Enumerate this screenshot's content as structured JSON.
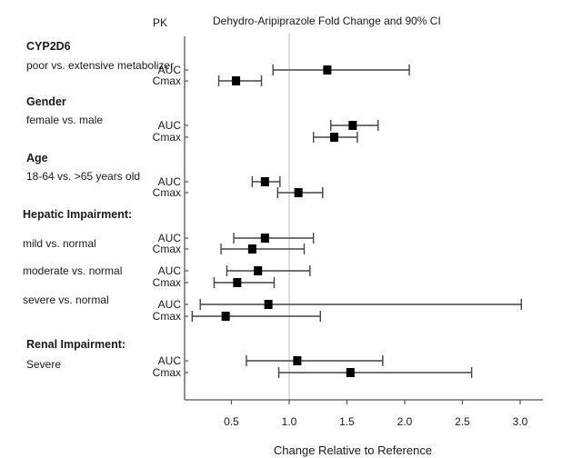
{
  "chart_data": {
    "type": "forest",
    "title": "Dehydro-Aripiprazole Fold Change and 90% CI",
    "pk_column_header": "PK",
    "xlabel": "Change Relative to Reference",
    "ylabel": "",
    "xlim": [
      0.1,
      3.2
    ],
    "xticks": [
      0.5,
      1.0,
      1.5,
      2.0,
      2.5,
      3.0
    ],
    "xtick_labels": [
      "0.5",
      "1.0",
      "1.5",
      "2.0",
      "2.5",
      "3.0"
    ],
    "reference_line": 1.0,
    "grid": false,
    "colors": {
      "marker": "#000000",
      "ci_line": "#444444",
      "axis": "#555555",
      "reference": "#cccccc"
    },
    "groups": [
      {
        "title": "CYP2D6",
        "subtitle": "poor vs. extensive metabolizer",
        "rows": [
          {
            "pk": "AUC",
            "estimate": 1.33,
            "lower": 0.86,
            "upper": 2.04
          },
          {
            "pk": "Cmax",
            "estimate": 0.54,
            "lower": 0.39,
            "upper": 0.76
          }
        ]
      },
      {
        "title": "Gender",
        "subtitle": "female vs. male",
        "rows": [
          {
            "pk": "AUC",
            "estimate": 1.55,
            "lower": 1.36,
            "upper": 1.77
          },
          {
            "pk": "Cmax",
            "estimate": 1.39,
            "lower": 1.21,
            "upper": 1.59
          }
        ]
      },
      {
        "title": "Age",
        "subtitle": "18-64 vs. >65 years old",
        "rows": [
          {
            "pk": "AUC",
            "estimate": 0.79,
            "lower": 0.68,
            "upper": 0.92
          },
          {
            "pk": "Cmax",
            "estimate": 1.08,
            "lower": 0.9,
            "upper": 1.29
          }
        ]
      },
      {
        "title": "Hepatic Impairment:",
        "subtitle": "mild vs. normal",
        "rows": [
          {
            "pk": "AUC",
            "estimate": 0.79,
            "lower": 0.52,
            "upper": 1.21
          },
          {
            "pk": "Cmax",
            "estimate": 0.68,
            "lower": 0.41,
            "upper": 1.13
          }
        ]
      },
      {
        "title": "",
        "subtitle": "moderate vs. normal",
        "rows": [
          {
            "pk": "AUC",
            "estimate": 0.73,
            "lower": 0.46,
            "upper": 1.18
          },
          {
            "pk": "Cmax",
            "estimate": 0.55,
            "lower": 0.35,
            "upper": 0.87
          }
        ]
      },
      {
        "title": "",
        "subtitle": "severe vs. normal",
        "rows": [
          {
            "pk": "AUC",
            "estimate": 0.82,
            "lower": 0.23,
            "upper": 3.01
          },
          {
            "pk": "Cmax",
            "estimate": 0.45,
            "lower": 0.16,
            "upper": 1.27
          }
        ]
      },
      {
        "title": "Renal Impairment:",
        "subtitle": "Severe",
        "rows": [
          {
            "pk": "AUC",
            "estimate": 1.07,
            "lower": 0.63,
            "upper": 1.81
          },
          {
            "pk": "Cmax",
            "estimate": 1.53,
            "lower": 0.91,
            "upper": 2.58
          }
        ]
      }
    ]
  }
}
